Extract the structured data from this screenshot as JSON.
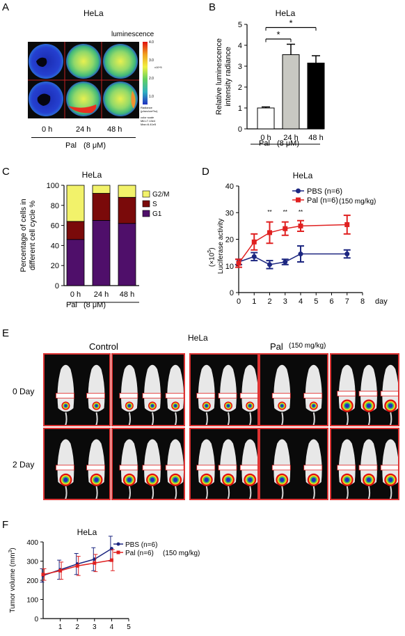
{
  "panels": {
    "A": {
      "letter": "A",
      "title": "HeLa",
      "scale_label": "luminescence",
      "scale_ticks": [
        "4.0",
        "3.0",
        "2.0",
        "1.0"
      ],
      "scale_exp": "x10^5",
      "radiance_label": "Radiance\n(p/sec/cm²/sr)",
      "color_scale_note": "color scale\nMin=7.13e4\nMax=6.41e5",
      "times": [
        "0 h",
        "24 h",
        "48 h"
      ],
      "treatment": "Pal",
      "dose": "(8 μM)"
    },
    "B": {
      "letter": "B",
      "significance": [
        "*",
        "*"
      ],
      "treatment": "Pal",
      "dose": "(8 μM)"
    },
    "C": {
      "letter": "C",
      "treatment": "Pal",
      "dose": "(8 μM)"
    },
    "D": {
      "letter": "D",
      "significance": [
        "**",
        "**",
        "**"
      ],
      "exponent_unit": "(×10",
      "exponent_power": "5",
      "exponent_close": ")",
      "legend_dose_note": "(150 mg/kg)"
    },
    "E": {
      "letter": "E",
      "title": "HeLa",
      "group_control": "Control",
      "group_treated": "Pal",
      "group_treated_dose": "(150 mg/kg)",
      "rows": [
        "0 Day",
        "2 Day"
      ]
    },
    "F": {
      "letter": "F",
      "legend_dose_note": "(150 mg/kg)"
    }
  },
  "colors": {
    "red": "#e02020",
    "navy": "#1c2680",
    "yellow": "#f2f26a",
    "darkred": "#7a0a0a",
    "purple": "#4f0f6a",
    "gray": "#c8c8c2"
  },
  "chart_data": [
    {
      "type": "bar",
      "title": "HeLa",
      "categories": [
        "0 h",
        "24 h",
        "48 h"
      ],
      "values": [
        1.0,
        3.55,
        3.15
      ],
      "errors": [
        0.05,
        0.5,
        0.35
      ],
      "ylabel": "Relative luminescence intensity radiance",
      "yticks": [
        0,
        1,
        2,
        3,
        4,
        5
      ],
      "ylim": [
        0,
        5
      ],
      "bar_colors": [
        "#ffffff",
        "#c8c8c2",
        "#000000"
      ]
    },
    {
      "type": "bar",
      "stacked": true,
      "title": "HeLa",
      "categories": [
        "0 h",
        "24 h",
        "48 h"
      ],
      "ylabel": "Percentage of cells in different cell cycle %",
      "yticks": [
        0,
        20,
        40,
        60,
        80,
        100
      ],
      "ylim": [
        0,
        100
      ],
      "series": [
        {
          "name": "G1",
          "values": [
            46,
            65,
            62
          ],
          "color": "#4f0f6a"
        },
        {
          "name": "S",
          "values": [
            18,
            27,
            26
          ],
          "color": "#7a0a0a"
        },
        {
          "name": "G2/M",
          "values": [
            36,
            8,
            12
          ],
          "color": "#f2f26a"
        }
      ]
    },
    {
      "type": "line",
      "title": "HeLa",
      "ylabel": "Luciferase activity",
      "xlabel": "day",
      "xticks": [
        0,
        1,
        2,
        3,
        4,
        5,
        6,
        7,
        8
      ],
      "yticks": [
        0,
        10,
        20,
        30,
        40
      ],
      "xlim": [
        0,
        8
      ],
      "ylim": [
        0,
        40
      ],
      "series": [
        {
          "name": "PBS (n=6)",
          "color": "#1c2680",
          "x": [
            0,
            1,
            2,
            3,
            4,
            7
          ],
          "y": [
            11.5,
            13.5,
            10.5,
            11.5,
            14.5,
            14.5
          ],
          "err": [
            1.0,
            1.5,
            1.5,
            1.0,
            3.0,
            1.5
          ]
        },
        {
          "name": "Pal (n=6)",
          "color": "#e02020",
          "x": [
            0,
            1,
            2,
            3,
            4,
            7
          ],
          "y": [
            11.0,
            19.0,
            22.5,
            24.0,
            25.0,
            25.5
          ],
          "err": [
            1.5,
            3.0,
            4.0,
            2.5,
            2.0,
            3.5
          ]
        }
      ]
    },
    {
      "type": "line",
      "title": "HeLa",
      "ylabel": "Tumor volume (mm",
      "ylabel_sup": "3",
      "ylabel_close": ")",
      "xticks": [
        1,
        2,
        3,
        4,
        5
      ],
      "yticks": [
        0,
        100,
        200,
        300,
        400
      ],
      "xlim": [
        0,
        5
      ],
      "ylim": [
        0,
        400
      ],
      "series": [
        {
          "name": "PBS (n=6)",
          "color": "#1c2680",
          "x": [
            0,
            1,
            2,
            3,
            4
          ],
          "y": [
            225,
            255,
            285,
            310,
            365
          ],
          "err": [
            35,
            50,
            55,
            60,
            65
          ]
        },
        {
          "name": "Pal (n=6)",
          "color": "#e02020",
          "x": [
            0,
            1,
            2,
            3,
            4
          ],
          "y": [
            230,
            250,
            275,
            290,
            305
          ],
          "err": [
            30,
            45,
            50,
            45,
            55
          ]
        }
      ]
    }
  ]
}
